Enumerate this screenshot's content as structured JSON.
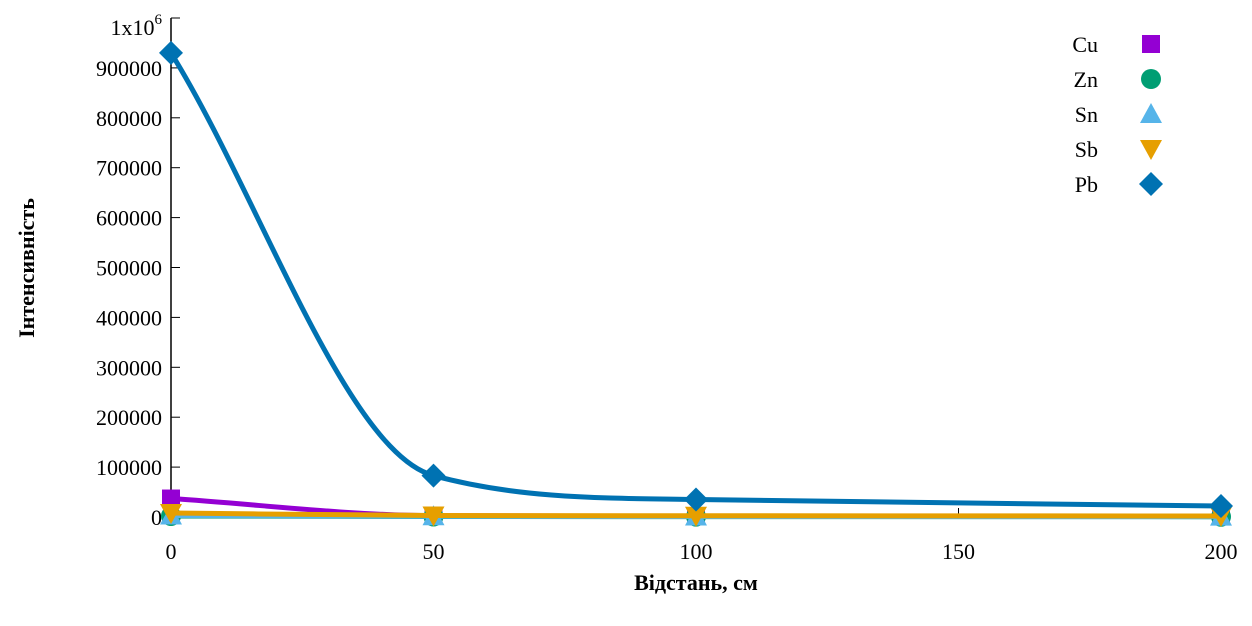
{
  "chart_data": {
    "type": "line",
    "title": "",
    "xlabel": "Відстань, см",
    "ylabel": "Інтенсивність",
    "x": [
      0,
      50,
      100,
      200
    ],
    "xlim": [
      0,
      200
    ],
    "ylim": [
      0,
      1000000
    ],
    "x_ticks": [
      0,
      50,
      100,
      150,
      200
    ],
    "x_tick_labels": [
      "0",
      "50",
      "100",
      "150",
      "200"
    ],
    "y_ticks": [
      0,
      100000,
      200000,
      300000,
      400000,
      500000,
      600000,
      700000,
      800000,
      900000
    ],
    "y_tick_labels": [
      "0",
      "100000",
      "200000",
      "300000",
      "400000",
      "500000",
      "600000",
      "700000",
      "800000",
      "900000"
    ],
    "y_top_label": {
      "base": "1x10",
      "exponent": "6"
    },
    "grid": false,
    "legend_position": "top-right",
    "series": [
      {
        "name": "Cu",
        "marker": "square",
        "color": "#9400d3",
        "values": [
          37000,
          2500,
          1500,
          1000
        ]
      },
      {
        "name": "Zn",
        "marker": "circle",
        "color": "#009e73",
        "values": [
          2000,
          1000,
          800,
          600
        ]
      },
      {
        "name": "Sn",
        "marker": "triangle-up",
        "color": "#56b4e9",
        "values": [
          3000,
          1500,
          1000,
          800
        ]
      },
      {
        "name": "Sb",
        "marker": "triangle-down",
        "color": "#e69f00",
        "values": [
          8000,
          3000,
          2500,
          2000
        ]
      },
      {
        "name": "Pb",
        "marker": "diamond",
        "color": "#0072b2",
        "values": [
          930000,
          83000,
          35000,
          22000
        ]
      }
    ]
  }
}
